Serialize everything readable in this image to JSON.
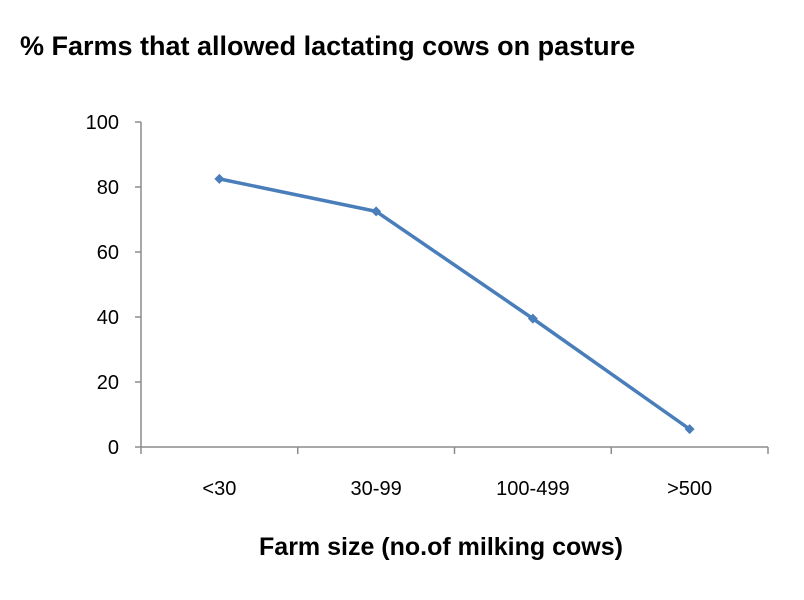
{
  "chart_data": {
    "type": "line",
    "title": "% Farms that allowed lactating cows on pasture",
    "xlabel": "Farm size (no.of milking cows)",
    "ylabel": "",
    "categories": [
      "<30",
      "30-99",
      "100-499",
      ">500"
    ],
    "series": [
      {
        "values": [
          82.5,
          72.5,
          39.5,
          5.5
        ]
      }
    ],
    "ylim": [
      0,
      100
    ],
    "yticks": [
      0,
      20,
      40,
      60,
      80,
      100
    ],
    "ytick_labels": [
      "0",
      "20",
      "40",
      "60",
      "80",
      "100"
    ],
    "grid": false,
    "legend": "none",
    "colors": {
      "line": "#4a7ebb",
      "axis": "#8c8c8c"
    }
  }
}
